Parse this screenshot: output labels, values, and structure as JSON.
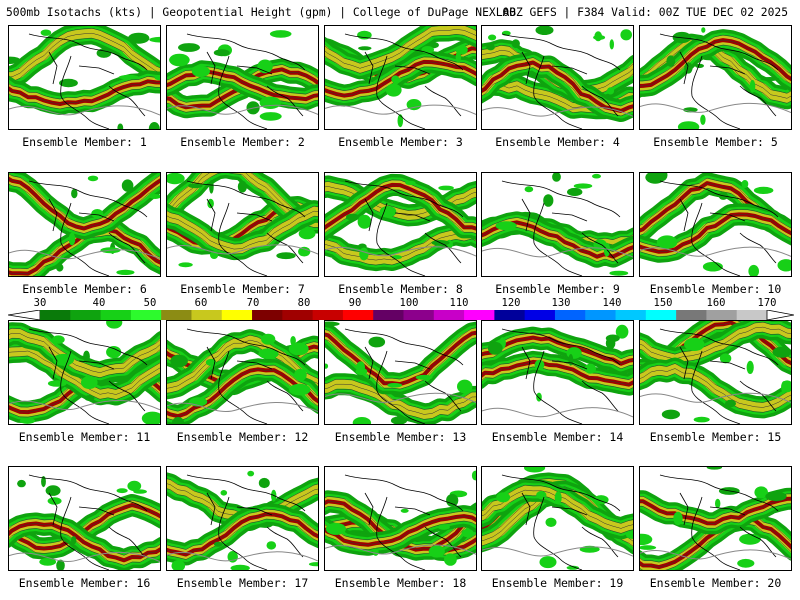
{
  "header": {
    "left": "500mb Isotachs (kts) | Geopotential Height (gpm) | College of DuPage NEXLAB",
    "right": "00Z GEFS | F384 Valid: 00Z TUE DEC 02 2025"
  },
  "colorbar": {
    "labels": [
      "30",
      "40",
      "50",
      "60",
      "70",
      "80",
      "90",
      "100",
      "110",
      "120",
      "130",
      "140",
      "150",
      "160",
      "170"
    ],
    "colors": [
      "#0a7a0a",
      "#0fa30f",
      "#17d017",
      "#2dfa2d",
      "#8c8c14",
      "#c8c81e",
      "#ffff00",
      "#7d0000",
      "#a00000",
      "#c80000",
      "#ff0000",
      "#640064",
      "#8c008c",
      "#c800c8",
      "#ff00ff",
      "#00009b",
      "#0000e6",
      "#0064ff",
      "#0096ff",
      "#00c8ff",
      "#00ffff",
      "#787878",
      "#a0a0a0",
      "#c8c8c8"
    ]
  },
  "panels": [
    {
      "caption": "Ensemble Member: 1"
    },
    {
      "caption": "Ensemble Member: 2"
    },
    {
      "caption": "Ensemble Member: 3"
    },
    {
      "caption": "Ensemble Member: 4"
    },
    {
      "caption": "Ensemble Member: 5"
    },
    {
      "caption": "Ensemble Member: 6"
    },
    {
      "caption": "Ensemble Member: 7"
    },
    {
      "caption": "Ensemble Member: 8"
    },
    {
      "caption": "Ensemble Member: 9"
    },
    {
      "caption": "Ensemble Member: 10"
    },
    {
      "caption": "Ensemble Member: 11"
    },
    {
      "caption": "Ensemble Member: 12"
    },
    {
      "caption": "Ensemble Member: 13"
    },
    {
      "caption": "Ensemble Member: 14"
    },
    {
      "caption": "Ensemble Member: 15"
    },
    {
      "caption": "Ensemble Member: 16"
    },
    {
      "caption": "Ensemble Member: 17"
    },
    {
      "caption": "Ensemble Member: 18"
    },
    {
      "caption": "Ensemble Member: 19"
    },
    {
      "caption": "Ensemble Member: 20"
    }
  ]
}
